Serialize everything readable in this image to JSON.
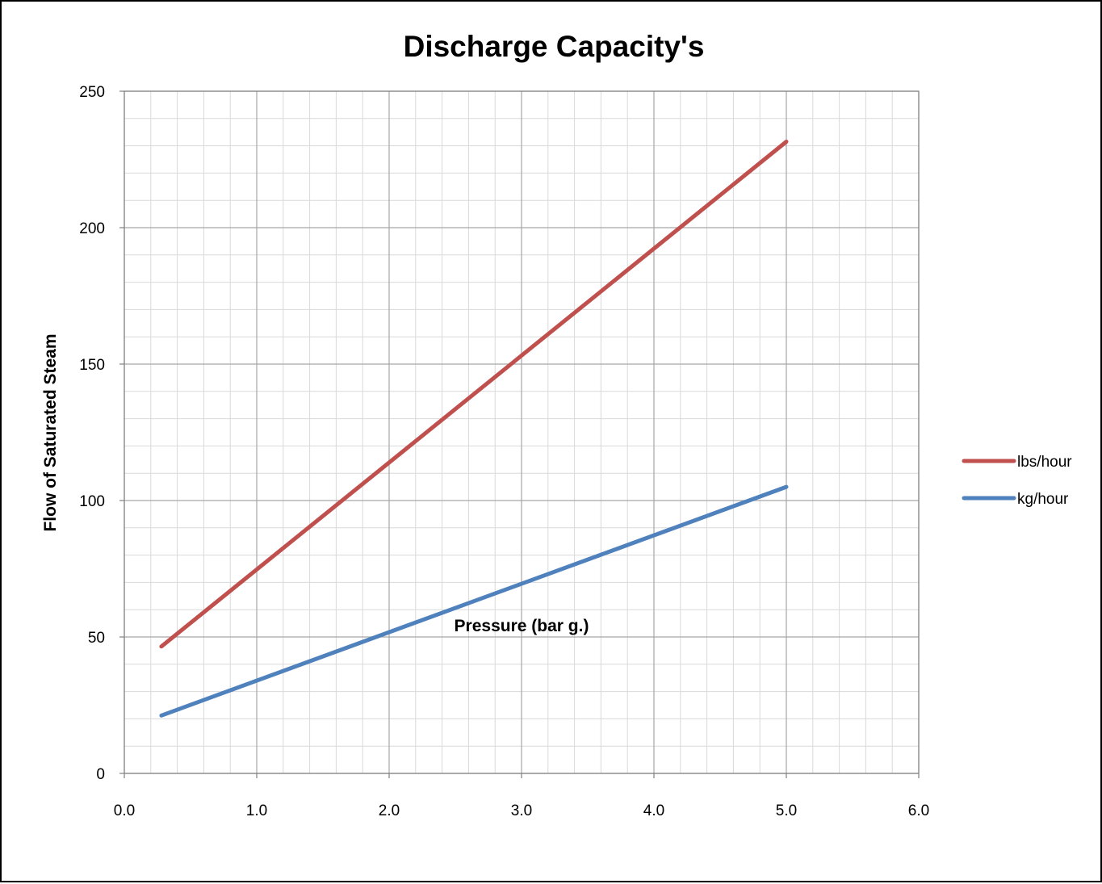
{
  "chart_data": {
    "type": "line",
    "title": "Discharge Capacity's",
    "xlabel": "Pressure (bar g.)",
    "ylabel": "Flow of Saturated Steam",
    "xlim": [
      0,
      6
    ],
    "ylim": [
      0,
      250
    ],
    "x_ticks": [
      "0.0",
      "1.0",
      "2.0",
      "3.0",
      "4.0",
      "5.0",
      "6.0"
    ],
    "y_ticks": [
      "0",
      "50",
      "100",
      "150",
      "200",
      "250"
    ],
    "x_minor_step": 0.2,
    "y_minor_step": 10,
    "grid": true,
    "legend_position": "right",
    "series": [
      {
        "name": "lbs/hour",
        "color": "#c0504d",
        "x": [
          0.28,
          5.0
        ],
        "y": [
          46.5,
          231.5
        ]
      },
      {
        "name": "kg/hour",
        "color": "#4f81bd",
        "x": [
          0.28,
          5.0
        ],
        "y": [
          21.2,
          105.0
        ]
      }
    ]
  }
}
